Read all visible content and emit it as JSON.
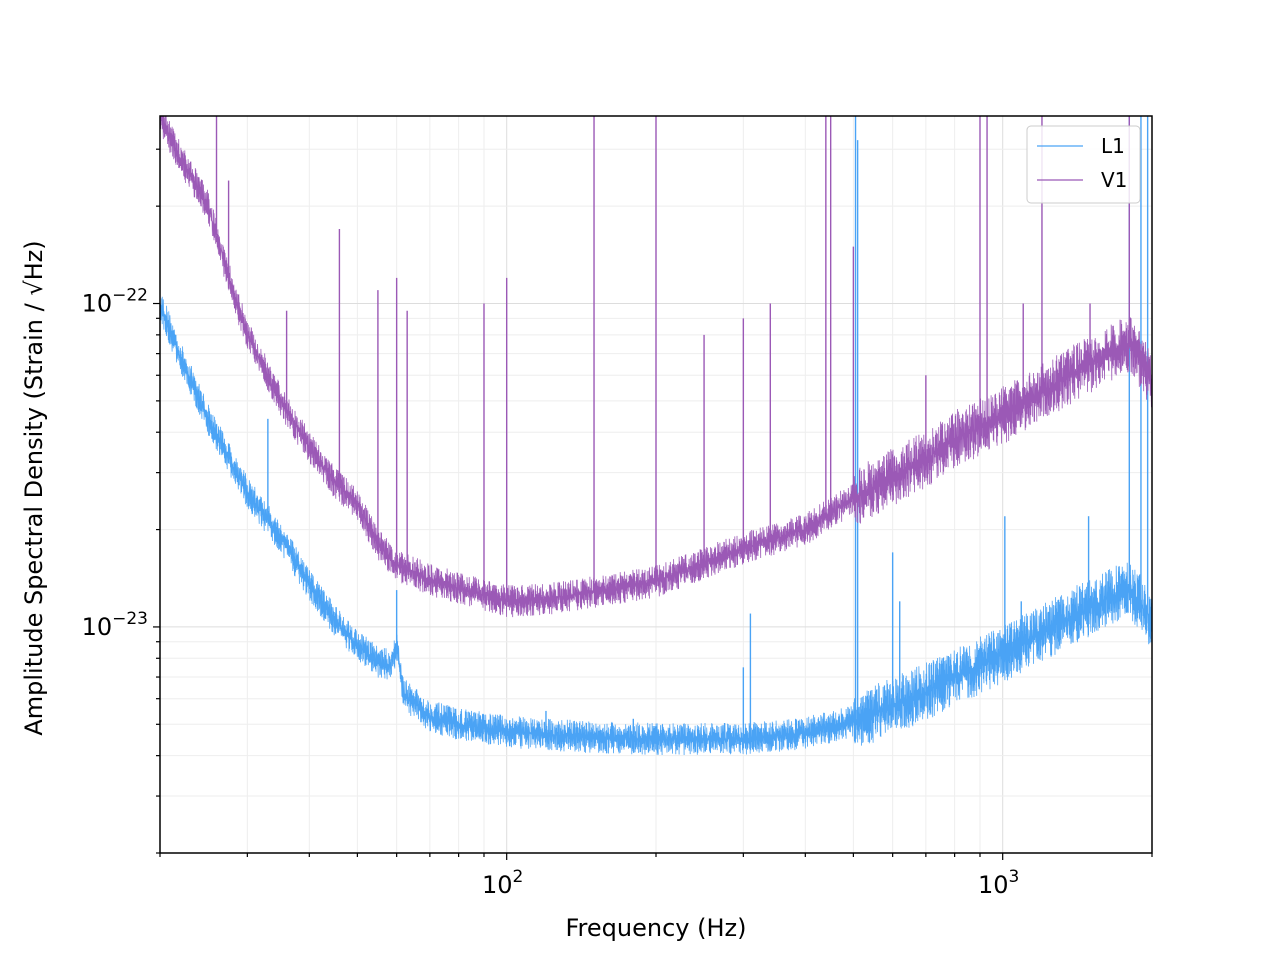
{
  "chart_data": {
    "type": "line",
    "xlabel": "Frequency (Hz)",
    "ylabel": "Amplitude Spectral Density (Strain / √Hz)",
    "xscale": "log",
    "yscale": "log",
    "xlim": [
      20,
      2000
    ],
    "ylim": [
      2e-24,
      3.8e-22
    ],
    "grid": true,
    "legend_position": "top-right",
    "x_ticks": [
      {
        "value": 100,
        "base": "10",
        "exp": "2"
      },
      {
        "value": 1000,
        "base": "10",
        "exp": "3"
      }
    ],
    "y_ticks": [
      {
        "value": 1e-22,
        "base": "10",
        "exp": "−22"
      },
      {
        "value": 1e-23,
        "base": "10",
        "exp": "−23"
      }
    ],
    "series": [
      {
        "name": "L1",
        "color": "#4aa3f5",
        "baseline_points": [
          [
            20,
            1e-22
          ],
          [
            22,
            6.8e-23
          ],
          [
            25,
            4.4e-23
          ],
          [
            30,
            2.6e-23
          ],
          [
            35,
            1.9e-23
          ],
          [
            40,
            1.35e-23
          ],
          [
            45,
            1.05e-23
          ],
          [
            50,
            8.8e-24
          ],
          [
            55,
            7.8e-24
          ],
          [
            58,
            7.6e-24
          ],
          [
            60,
            8.6e-24
          ],
          [
            62,
            6.2e-24
          ],
          [
            70,
            5.3e-24
          ],
          [
            80,
            5e-24
          ],
          [
            100,
            4.75e-24
          ],
          [
            150,
            4.55e-24
          ],
          [
            200,
            4.5e-24
          ],
          [
            300,
            4.5e-24
          ],
          [
            400,
            4.7e-24
          ],
          [
            500,
            5.1e-24
          ],
          [
            600,
            5.7e-24
          ],
          [
            700,
            6.3e-24
          ],
          [
            800,
            7e-24
          ],
          [
            1000,
            8.2e-24
          ],
          [
            1200,
            9.6e-24
          ],
          [
            1500,
            1.15e-23
          ],
          [
            1800,
            1.32e-23
          ],
          [
            2000,
            1.05e-23
          ]
        ],
        "spectral_lines": [
          [
            33,
            4.4e-23
          ],
          [
            60,
            1.3e-23
          ],
          [
            120,
            5.5e-24
          ],
          [
            180,
            5.2e-24
          ],
          [
            300,
            7.5e-24
          ],
          [
            310,
            1.1e-23
          ],
          [
            505,
            3.8e-22
          ],
          [
            510,
            3.2e-22
          ],
          [
            600,
            1.7e-23
          ],
          [
            620,
            1.2e-23
          ],
          [
            1010,
            2.2e-23
          ],
          [
            1090,
            1.2e-23
          ],
          [
            1490,
            2.2e-23
          ],
          [
            1800,
            3.8e-22
          ],
          [
            1900,
            3.8e-22
          ],
          [
            1960,
            3.8e-22
          ]
        ]
      },
      {
        "name": "V1",
        "color": "#9b59b6",
        "baseline_points": [
          [
            20,
            3.8e-22
          ],
          [
            22,
            2.8e-22
          ],
          [
            25,
            2e-22
          ],
          [
            28,
            1.1e-22
          ],
          [
            30,
            8e-23
          ],
          [
            35,
            5e-23
          ],
          [
            40,
            3.6e-23
          ],
          [
            45,
            2.8e-23
          ],
          [
            50,
            2.4e-23
          ],
          [
            55,
            1.8e-23
          ],
          [
            60,
            1.55e-23
          ],
          [
            70,
            1.4e-23
          ],
          [
            80,
            1.32e-23
          ],
          [
            100,
            1.2e-23
          ],
          [
            120,
            1.22e-23
          ],
          [
            150,
            1.28e-23
          ],
          [
            200,
            1.38e-23
          ],
          [
            300,
            1.75e-23
          ],
          [
            400,
            2e-23
          ],
          [
            500,
            2.5e-23
          ],
          [
            600,
            2.9e-23
          ],
          [
            700,
            3.3e-23
          ],
          [
            800,
            3.8e-23
          ],
          [
            1000,
            4.5e-23
          ],
          [
            1200,
            5.3e-23
          ],
          [
            1500,
            6.5e-23
          ],
          [
            1800,
            7.5e-23
          ],
          [
            2000,
            5.8e-23
          ]
        ],
        "spectral_lines": [
          [
            26,
            3.8e-22
          ],
          [
            27.5,
            2.4e-22
          ],
          [
            36,
            9.5e-23
          ],
          [
            46,
            1.7e-22
          ],
          [
            55,
            1.1e-22
          ],
          [
            60,
            1.2e-22
          ],
          [
            63,
            9.5e-23
          ],
          [
            90,
            1e-22
          ],
          [
            100,
            1.2e-22
          ],
          [
            150,
            3.8e-22
          ],
          [
            200,
            3.8e-22
          ],
          [
            250,
            8e-23
          ],
          [
            300,
            9e-23
          ],
          [
            340,
            1e-22
          ],
          [
            440,
            3.8e-22
          ],
          [
            450,
            3.8e-22
          ],
          [
            500,
            1.5e-22
          ],
          [
            700,
            6e-23
          ],
          [
            900,
            3.8e-22
          ],
          [
            930,
            3.8e-22
          ],
          [
            1100,
            1e-22
          ],
          [
            1200,
            3.8e-22
          ],
          [
            1500,
            1e-22
          ],
          [
            1800,
            3.8e-22
          ]
        ]
      }
    ]
  }
}
